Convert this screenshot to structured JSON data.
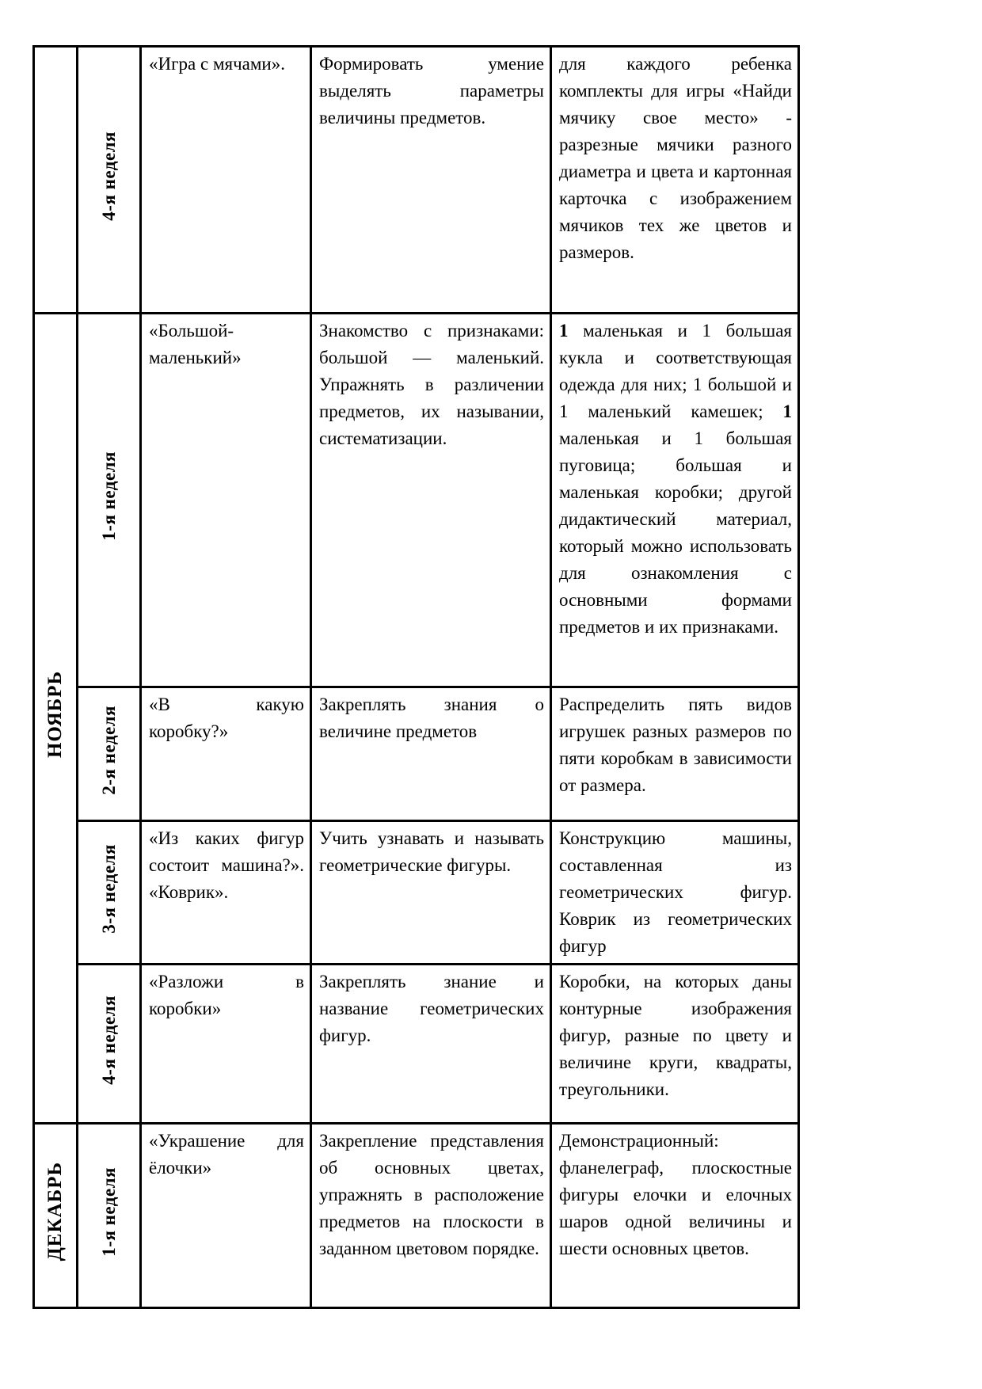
{
  "document": {
    "background_color": "#ffffff",
    "text_color": "#000000",
    "border_color": "#000000",
    "language": "ru",
    "kind": "weekly lesson plan table"
  },
  "table": {
    "columns": [
      "month",
      "week",
      "activity_name",
      "goal",
      "materials"
    ],
    "sections": [
      {
        "month_label": "",
        "rows": [
          {
            "week": "4-я неделя",
            "name": "«Игра с мячами».",
            "goal": "Формировать умение выделять параметры величины предметов.",
            "materials": [
              {
                "t": "для каждого ребенка комплекты для игры «Найди мячику свое место» - разрезные мячики разного диаметра и цвета и картонная карточка с изображением мячиков тех же цветов и размеров.",
                "b": false
              }
            ]
          }
        ]
      },
      {
        "month_label": "НОЯБРЬ",
        "rows": [
          {
            "week": "1-я неделя",
            "name": "«Большой-маленький»",
            "goal": "Знакомство с признаками: большой — маленький. Упражнять в различении предметов, их назывании, систематизации.",
            "materials": [
              {
                "t": "1",
                "b": true
              },
              {
                "t": " маленькая и 1 большая кукла и соответствующая одежда для них; 1 большой и 1 маленький камешек; ",
                "b": false
              },
              {
                "t": "1",
                "b": true
              },
              {
                "t": " маленькая и 1 большая пуговица; большая и маленькая коробки; другой дидактический материал, который можно использовать для ознакомления с основными формами предметов и их признаками.",
                "b": false
              }
            ]
          },
          {
            "week": "2-я неделя",
            "name": "«В какую коробку?»",
            "goal": "Закреплять знания о величине предметов",
            "materials": [
              {
                "t": "Распределить пять видов игрушек разных размеров по пяти коробкам в зависимости от размера.",
                "b": false
              }
            ]
          },
          {
            "week": "3-я неделя",
            "name": "«Из каких фигур состоит машина?». «Коврик».",
            "goal": "Учить узнавать и называть геометрические фигуры.",
            "materials": [
              {
                "t": "Конструкцию машины, составленная из геометрических фигур. Коврик из геометрических фигур",
                "b": false
              }
            ]
          },
          {
            "week": "4-я неделя",
            "name": "«Разложи в коробки»",
            "goal": "Закреплять знание и название геометрических фигур.",
            "materials": [
              {
                "t": "Коробки, на которых даны контурные изображения фигур, разные по цвету и величине круги, квадраты, треугольники.",
                "b": false
              }
            ]
          }
        ]
      },
      {
        "month_label": "ДЕКАБРЬ",
        "rows": [
          {
            "week": "1-я неделя",
            "name": "«Украшение для ёлочки»",
            "goal": "Закрепление представления об основных цветах, упражнять в расположение предметов на плоскости в заданном цветовом порядке.",
            "materials": [
              {
                "t": "Демонстрационный: фланелеграф, плоскостные фигуры елочки и елочных шаров одной величины и шести основных цветов.",
                "b": false
              }
            ]
          }
        ]
      }
    ]
  }
}
